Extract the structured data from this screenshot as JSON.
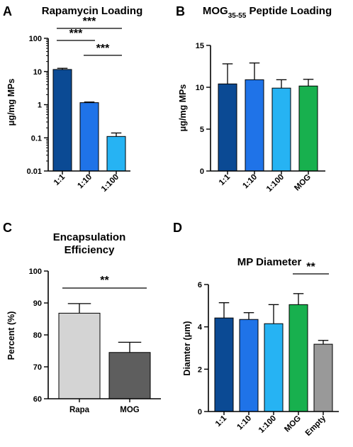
{
  "chart_data": [
    {
      "panel": "A",
      "type": "bar",
      "title": "Rapamycin Loading",
      "ylabel": "μg/mg MPs",
      "yscale": "log",
      "ylim": [
        0.01,
        100
      ],
      "yticks": [
        "0.01",
        "0.1",
        "1",
        "10",
        "100"
      ],
      "categories": [
        "1:1",
        "1:10",
        "1:100"
      ],
      "values": [
        11.5,
        1.15,
        0.11
      ],
      "errors": [
        1.0,
        0.05,
        0.03
      ],
      "colors": [
        "#0b4a94",
        "#1f73e8",
        "#26b3f3"
      ],
      "significance": [
        {
          "from": 0,
          "to": 2,
          "label": "***"
        },
        {
          "from": 0,
          "to": 1,
          "label": "***"
        },
        {
          "from": 1,
          "to": 2,
          "label": "***"
        }
      ]
    },
    {
      "panel": "B",
      "type": "bar",
      "title": "MOG",
      "title_subscript": "35-55",
      "title_suffix": " Peptide Loading",
      "ylabel": "μg/mg MPs",
      "ylim": [
        0,
        15
      ],
      "yticks": [
        "0",
        "5",
        "10",
        "15"
      ],
      "categories": [
        "1:1",
        "1:10",
        "1:100",
        "MOG"
      ],
      "values": [
        10.4,
        10.9,
        9.9,
        10.15
      ],
      "errors": [
        2.4,
        2.0,
        1.0,
        0.8
      ],
      "colors": [
        "#0b4a94",
        "#1f73e8",
        "#26b3f3",
        "#18b04e"
      ],
      "significance": []
    },
    {
      "panel": "C",
      "type": "bar",
      "title_lines": [
        "Encapsulation",
        "Efficiency"
      ],
      "ylabel": "Percent (%)",
      "ylim": [
        60,
        100
      ],
      "yticks": [
        "60",
        "70",
        "80",
        "90",
        "100"
      ],
      "categories": [
        "Rapa",
        "MOG"
      ],
      "values": [
        86.8,
        74.5
      ],
      "errors": [
        3.0,
        3.2
      ],
      "colors": [
        "#d4d4d4",
        "#5e5e5e"
      ],
      "significance": [
        {
          "from": 0,
          "to": 1,
          "label": "**"
        }
      ]
    },
    {
      "panel": "D",
      "type": "bar",
      "title": "MP Diameter",
      "ylabel": "Diamter (μm)",
      "ylim": [
        0,
        6
      ],
      "yticks": [
        "0",
        "2",
        "4",
        "6"
      ],
      "categories": [
        "1:1",
        "1:10",
        "1:100",
        "MOG",
        "Empty"
      ],
      "values": [
        4.42,
        4.35,
        4.15,
        5.05,
        3.18
      ],
      "errors": [
        0.72,
        0.32,
        0.9,
        0.52,
        0.18
      ],
      "colors": [
        "#0b4a94",
        "#1f73e8",
        "#26b3f3",
        "#18b04e",
        "#999999"
      ],
      "significance": [
        {
          "from": 3,
          "to": 4,
          "label": "**"
        }
      ]
    }
  ]
}
